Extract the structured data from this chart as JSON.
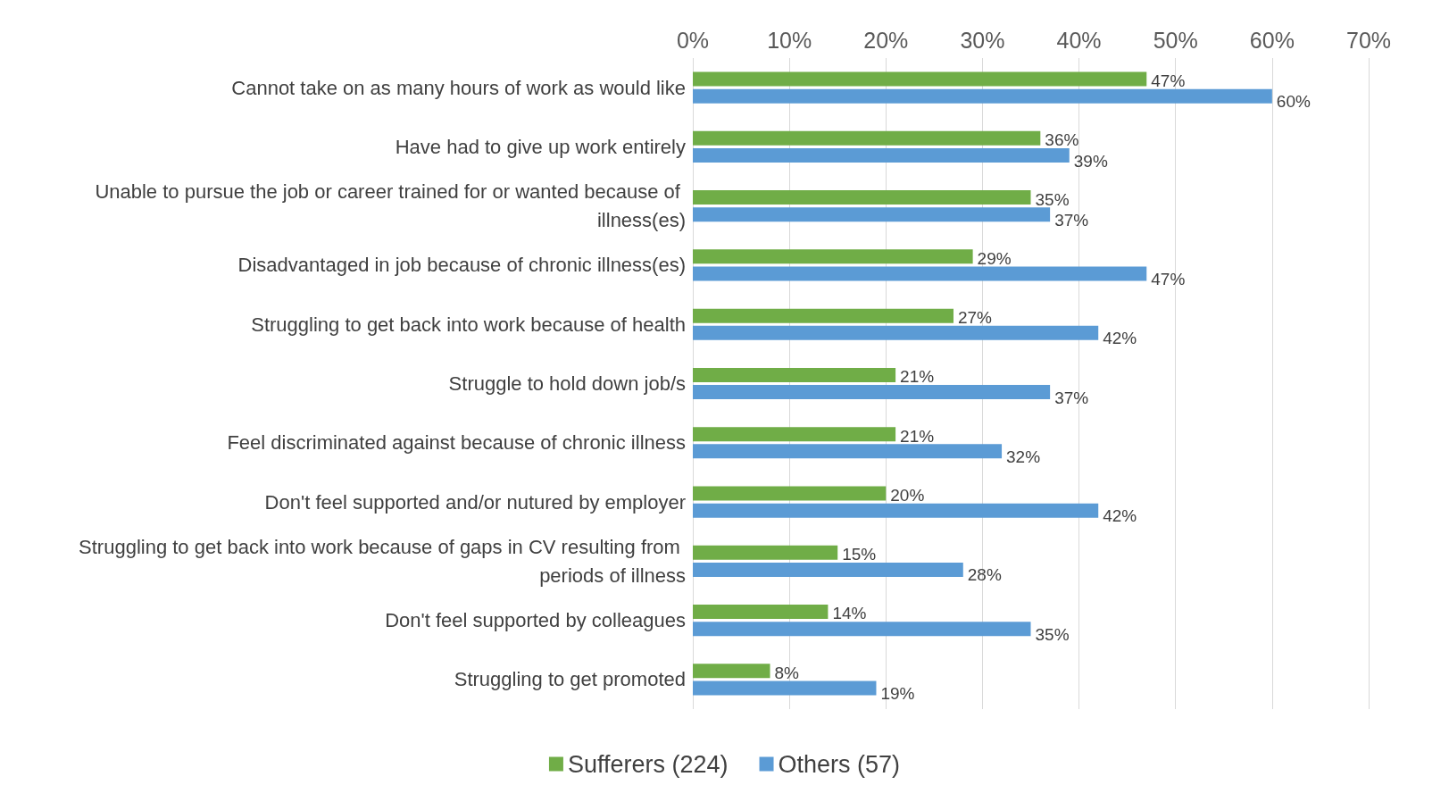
{
  "chart_data": {
    "type": "bar",
    "orientation": "horizontal",
    "categories": [
      "Cannot take on as many hours of work as would like",
      "Have had to give up work entirely",
      "Unable to pursue the job or career trained for or wanted because of illness(es)",
      "Disadvantaged in job because of chronic illness(es)",
      "Struggling to get back into work because of health",
      "Struggle to hold down job/s",
      "Feel discriminated against because of chronic illness",
      "Don't feel supported and/or nutured by employer",
      "Struggling to get back into work because of gaps in CV resulting from periods of illness",
      "Don't feel supported by colleagues",
      "Struggling to get promoted"
    ],
    "series": [
      {
        "name": "Sufferers (224)",
        "color": "#70ad47",
        "values": [
          47,
          36,
          35,
          29,
          27,
          21,
          21,
          20,
          15,
          14,
          8
        ],
        "value_labels": [
          "47%",
          "36%",
          "35%",
          "29%",
          "27%",
          "21%",
          "21%",
          "20%",
          "15%",
          "14%",
          "8%"
        ]
      },
      {
        "name": "Others (57)",
        "color": "#5b9bd5",
        "values": [
          60,
          39,
          37,
          47,
          42,
          37,
          32,
          42,
          28,
          35,
          19
        ],
        "value_labels": [
          "60%",
          "39%",
          "37%",
          "47%",
          "42%",
          "37%",
          "32%",
          "42%",
          "28%",
          "35%",
          "19%"
        ]
      }
    ],
    "xlim": [
      0,
      70
    ],
    "xticks": [
      {
        "value": 0,
        "label": "0%"
      },
      {
        "value": 10,
        "label": "10%"
      },
      {
        "value": 20,
        "label": "20%"
      },
      {
        "value": 30,
        "label": "30%"
      },
      {
        "value": 40,
        "label": "40%"
      },
      {
        "value": 50,
        "label": "50%"
      },
      {
        "value": 60,
        "label": "60%"
      },
      {
        "value": 70,
        "label": "70%"
      }
    ],
    "grid": "x",
    "legend": "bottom"
  }
}
